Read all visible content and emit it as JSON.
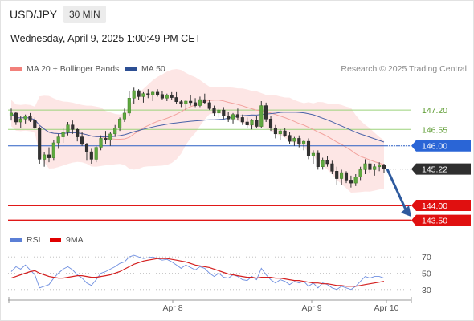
{
  "header": {
    "symbol": "USD/JPY",
    "timeframe": "30 MIN",
    "datetime": "Wednesday, April 9, 2025 1:00:49 PM CET"
  },
  "legend": {
    "ma20": {
      "label": "MA 20 + Bollinger Bands",
      "color": "#f2807a"
    },
    "ma50": {
      "label": "MA 50",
      "color": "#2d4f94"
    },
    "rsi": {
      "label": "RSI",
      "color": "#5b7fd6"
    },
    "rsi_ma": {
      "label": "9MA",
      "color": "#e00000"
    }
  },
  "credit": "Research © 2025 Trading Central",
  "chart_data": [
    {
      "type": "candlestick",
      "ylim": [
        143.3,
        148.2
      ],
      "x_ticks": [
        "Apr 8",
        "Apr 9",
        "Apr 10"
      ],
      "levels": [
        {
          "value": 147.2,
          "label": "147.20",
          "style": "green-line"
        },
        {
          "value": 146.55,
          "label": "146.55",
          "style": "green-line"
        },
        {
          "value": 146.0,
          "label": "146.00",
          "style": "blue-tag"
        },
        {
          "value": 145.22,
          "label": "145.22",
          "style": "dark-tag"
        },
        {
          "value": 144.0,
          "label": "144.00",
          "style": "red-tag"
        },
        {
          "value": 143.5,
          "label": "143.50",
          "style": "red-tag"
        }
      ],
      "forecast_arrow": {
        "from": 145.22,
        "to": 143.7
      },
      "ohlc": [
        [
          147.0,
          147.25,
          146.85,
          147.1
        ],
        [
          147.1,
          147.15,
          146.7,
          146.8
        ],
        [
          146.8,
          147.0,
          146.6,
          146.9
        ],
        [
          146.9,
          147.05,
          146.75,
          147.0
        ],
        [
          147.0,
          147.1,
          146.8,
          146.85
        ],
        [
          146.85,
          146.95,
          146.55,
          146.6
        ],
        [
          146.6,
          146.65,
          145.4,
          145.55
        ],
        [
          145.55,
          145.8,
          145.3,
          145.7
        ],
        [
          145.7,
          145.95,
          145.45,
          145.6
        ],
        [
          145.6,
          146.2,
          145.5,
          146.1
        ],
        [
          146.1,
          146.4,
          145.9,
          146.3
        ],
        [
          146.3,
          146.6,
          146.1,
          146.45
        ],
        [
          146.45,
          146.8,
          146.35,
          146.7
        ],
        [
          146.7,
          146.85,
          146.4,
          146.55
        ],
        [
          146.55,
          146.6,
          146.15,
          146.3
        ],
        [
          146.3,
          146.45,
          146.0,
          146.05
        ],
        [
          146.05,
          146.1,
          145.5,
          145.8
        ],
        [
          145.8,
          145.9,
          145.4,
          145.55
        ],
        [
          145.55,
          146.0,
          145.45,
          145.95
        ],
        [
          145.95,
          146.35,
          145.85,
          146.25
        ],
        [
          146.25,
          146.5,
          146.05,
          146.2
        ],
        [
          146.2,
          146.45,
          146.0,
          146.4
        ],
        [
          146.4,
          146.7,
          146.3,
          146.6
        ],
        [
          146.6,
          146.95,
          146.5,
          146.9
        ],
        [
          146.9,
          147.25,
          146.8,
          147.1
        ],
        [
          147.1,
          147.85,
          147.0,
          147.6
        ],
        [
          147.6,
          147.95,
          147.4,
          147.85
        ],
        [
          147.85,
          147.9,
          147.55,
          147.65
        ],
        [
          147.65,
          147.8,
          147.45,
          147.75
        ],
        [
          147.75,
          147.9,
          147.6,
          147.7
        ],
        [
          147.7,
          147.85,
          147.5,
          147.8
        ],
        [
          147.8,
          147.9,
          147.65,
          147.72
        ],
        [
          147.72,
          147.85,
          147.55,
          147.6
        ],
        [
          147.6,
          147.75,
          147.5,
          147.7
        ],
        [
          147.7,
          147.8,
          147.55,
          147.62
        ],
        [
          147.62,
          147.8,
          147.4,
          147.48
        ],
        [
          147.48,
          147.55,
          147.3,
          147.4
        ],
        [
          147.4,
          147.55,
          147.2,
          147.5
        ],
        [
          147.5,
          147.7,
          147.35,
          147.45
        ],
        [
          147.45,
          147.6,
          147.3,
          147.35
        ],
        [
          147.35,
          147.65,
          147.3,
          147.55
        ],
        [
          147.55,
          147.75,
          147.4,
          147.45
        ],
        [
          147.45,
          147.55,
          147.2,
          147.25
        ],
        [
          147.25,
          147.35,
          147.0,
          147.1
        ],
        [
          147.1,
          147.25,
          146.95,
          147.2
        ],
        [
          147.2,
          147.3,
          146.9,
          147.0
        ],
        [
          147.0,
          147.15,
          146.8,
          146.9
        ],
        [
          146.9,
          147.1,
          146.75,
          147.05
        ],
        [
          147.05,
          147.25,
          146.85,
          146.95
        ],
        [
          146.95,
          147.05,
          146.7,
          146.8
        ],
        [
          146.8,
          146.95,
          146.6,
          146.7
        ],
        [
          146.7,
          146.9,
          146.55,
          146.85
        ],
        [
          146.85,
          147.0,
          146.6,
          146.65
        ],
        [
          146.65,
          147.5,
          146.6,
          147.35
        ],
        [
          147.35,
          147.45,
          146.8,
          146.9
        ],
        [
          146.9,
          147.0,
          146.5,
          146.6
        ],
        [
          146.6,
          146.7,
          146.25,
          146.4
        ],
        [
          146.4,
          146.55,
          146.2,
          146.5
        ],
        [
          146.5,
          146.6,
          146.3,
          146.35
        ],
        [
          146.35,
          146.45,
          146.05,
          146.15
        ],
        [
          146.15,
          146.3,
          146.0,
          146.25
        ],
        [
          146.25,
          146.35,
          145.95,
          146.05
        ],
        [
          146.05,
          146.2,
          145.85,
          146.15
        ],
        [
          146.15,
          146.25,
          145.55,
          145.65
        ],
        [
          145.65,
          145.85,
          145.4,
          145.75
        ],
        [
          145.75,
          145.85,
          145.2,
          145.3
        ],
        [
          145.3,
          145.6,
          145.2,
          145.5
        ],
        [
          145.5,
          145.65,
          145.3,
          145.4
        ],
        [
          145.4,
          145.5,
          145.05,
          145.15
        ],
        [
          145.15,
          145.3,
          144.7,
          144.9
        ],
        [
          144.9,
          145.2,
          144.7,
          145.1
        ],
        [
          145.1,
          145.15,
          144.75,
          144.85
        ],
        [
          144.85,
          145.0,
          144.6,
          144.75
        ],
        [
          144.75,
          145.05,
          144.65,
          144.95
        ],
        [
          144.95,
          145.3,
          144.85,
          145.2
        ],
        [
          145.2,
          145.55,
          145.05,
          145.4
        ],
        [
          145.4,
          145.5,
          145.1,
          145.2
        ],
        [
          145.2,
          145.4,
          145.0,
          145.3
        ],
        [
          145.3,
          145.45,
          145.15,
          145.35
        ],
        [
          145.35,
          145.4,
          145.1,
          145.22
        ]
      ]
    },
    {
      "type": "line",
      "ylim": [
        20,
        80
      ],
      "y_ticks": [
        30,
        50,
        70
      ],
      "series": [
        {
          "name": "RSI",
          "values": [
            52,
            58,
            55,
            60,
            54,
            48,
            32,
            34,
            36,
            44,
            50,
            55,
            58,
            54,
            48,
            44,
            38,
            35,
            42,
            50,
            52,
            55,
            58,
            62,
            64,
            70,
            72,
            70,
            68,
            69,
            70,
            68,
            66,
            67,
            64,
            60,
            56,
            60,
            57,
            54,
            58,
            56,
            50,
            46,
            50,
            45,
            44,
            48,
            46,
            42,
            41,
            46,
            42,
            56,
            48,
            42,
            38,
            42,
            40,
            36,
            40,
            38,
            40,
            34,
            38,
            32,
            38,
            36,
            32,
            30,
            34,
            32,
            30,
            34,
            40,
            46,
            44,
            46,
            46,
            44
          ]
        },
        {
          "name": "9MA",
          "values": [
            44,
            46,
            48,
            50,
            52,
            53,
            50,
            48,
            46,
            45,
            44,
            44,
            45,
            46,
            47,
            47,
            46,
            45,
            45,
            46,
            47,
            48,
            50,
            52,
            55,
            58,
            61,
            63,
            65,
            66,
            67,
            68,
            68,
            68,
            67,
            66,
            65,
            64,
            62,
            60,
            59,
            58,
            57,
            55,
            53,
            51,
            49,
            48,
            47,
            46,
            45,
            45,
            44,
            45,
            45,
            45,
            44,
            44,
            43,
            42,
            41,
            41,
            40,
            39,
            38,
            38,
            37,
            37,
            36,
            35,
            35,
            34,
            34,
            34,
            35,
            36,
            37,
            38,
            39,
            40
          ]
        }
      ]
    }
  ]
}
